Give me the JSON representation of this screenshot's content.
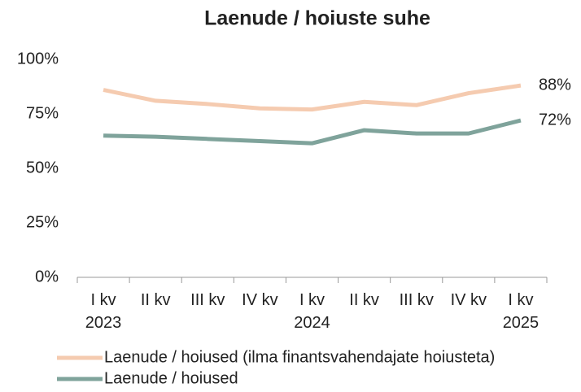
{
  "chart_data": {
    "type": "line",
    "title": "Laenude / hoiuste suhe",
    "categories": [
      "I kv\n2023",
      "II kv",
      "III kv",
      "IV kv",
      "I kv\n2024",
      "II kv",
      "III kv",
      "IV kv",
      "I kv\n2025"
    ],
    "series": [
      {
        "name": "Laenude / hoiused (ilma finantsvahendajate hoiusteta)",
        "color": "#f5cbb0",
        "values": [
          86,
          81,
          79.5,
          77.5,
          77,
          80.5,
          79,
          84.5,
          88
        ],
        "value_labels": [
          null,
          null,
          null,
          null,
          null,
          null,
          null,
          null,
          "88%"
        ]
      },
      {
        "name": "Laenude / hoiused",
        "color": "#7fa39b",
        "values": [
          65,
          64.5,
          63.5,
          62.5,
          61.5,
          67.5,
          66,
          66,
          72
        ],
        "value_labels": [
          null,
          null,
          null,
          null,
          null,
          null,
          null,
          null,
          "72%"
        ]
      }
    ],
    "ylim": [
      0,
      100
    ],
    "yticks": [
      {
        "value": 0,
        "label": "0%"
      },
      {
        "value": 25,
        "label": "25%"
      },
      {
        "value": 50,
        "label": "50%"
      },
      {
        "value": 75,
        "label": "75%"
      },
      {
        "value": 100,
        "label": "100%"
      }
    ],
    "grid": false,
    "legend": "bottom"
  }
}
